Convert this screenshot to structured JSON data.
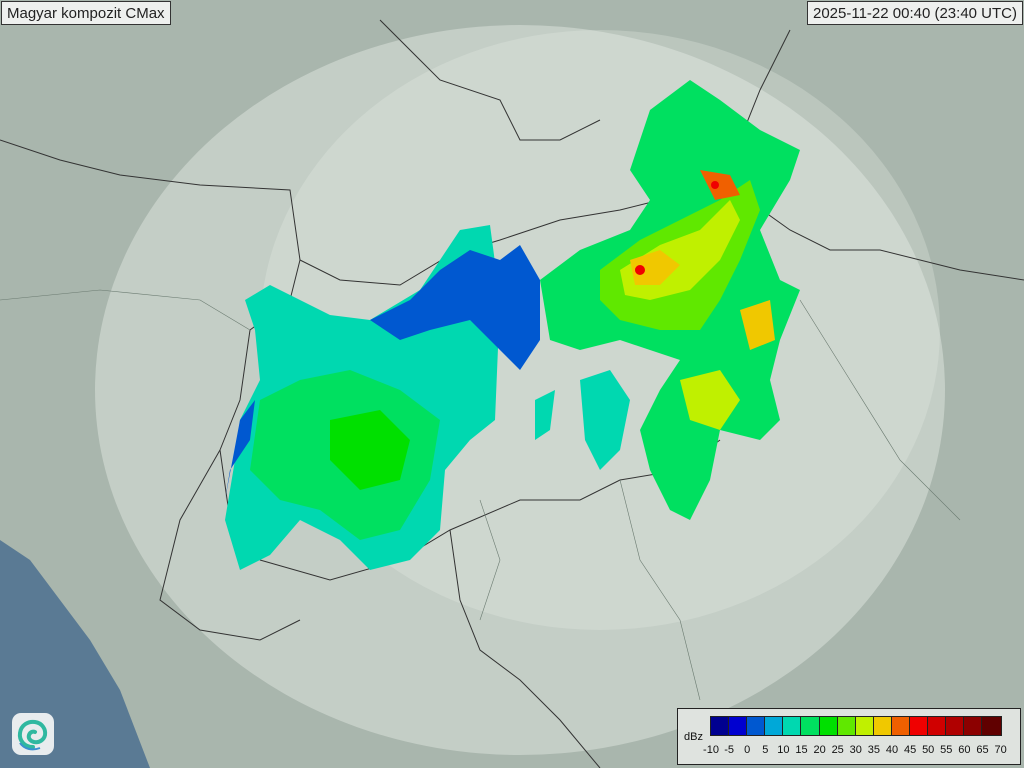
{
  "title": "Magyar kompozit  CMax",
  "timestamp": "2025-11-22 00:40 (23:40 UTC)",
  "legend": {
    "unit": "dBz",
    "ticks": [
      "-10",
      "-5",
      "0",
      "5",
      "10",
      "15",
      "20",
      "25",
      "30",
      "35",
      "40",
      "45",
      "50",
      "55",
      "60",
      "65",
      "70"
    ],
    "colors": [
      "#000090",
      "#0000d0",
      "#0058d0",
      "#00a8d8",
      "#00d8b0",
      "#00e060",
      "#00e000",
      "#60e800",
      "#c0f000",
      "#f0c800",
      "#f06000",
      "#f00000",
      "#d00000",
      "#b00000",
      "#8c0000",
      "#600000"
    ]
  },
  "map": {
    "land_color": "#a9b6ad",
    "sea_color": "#5a7a94",
    "radar_coverage_color": "#dfe6e0"
  },
  "logo": {
    "icon": "swirl-logo-icon"
  }
}
